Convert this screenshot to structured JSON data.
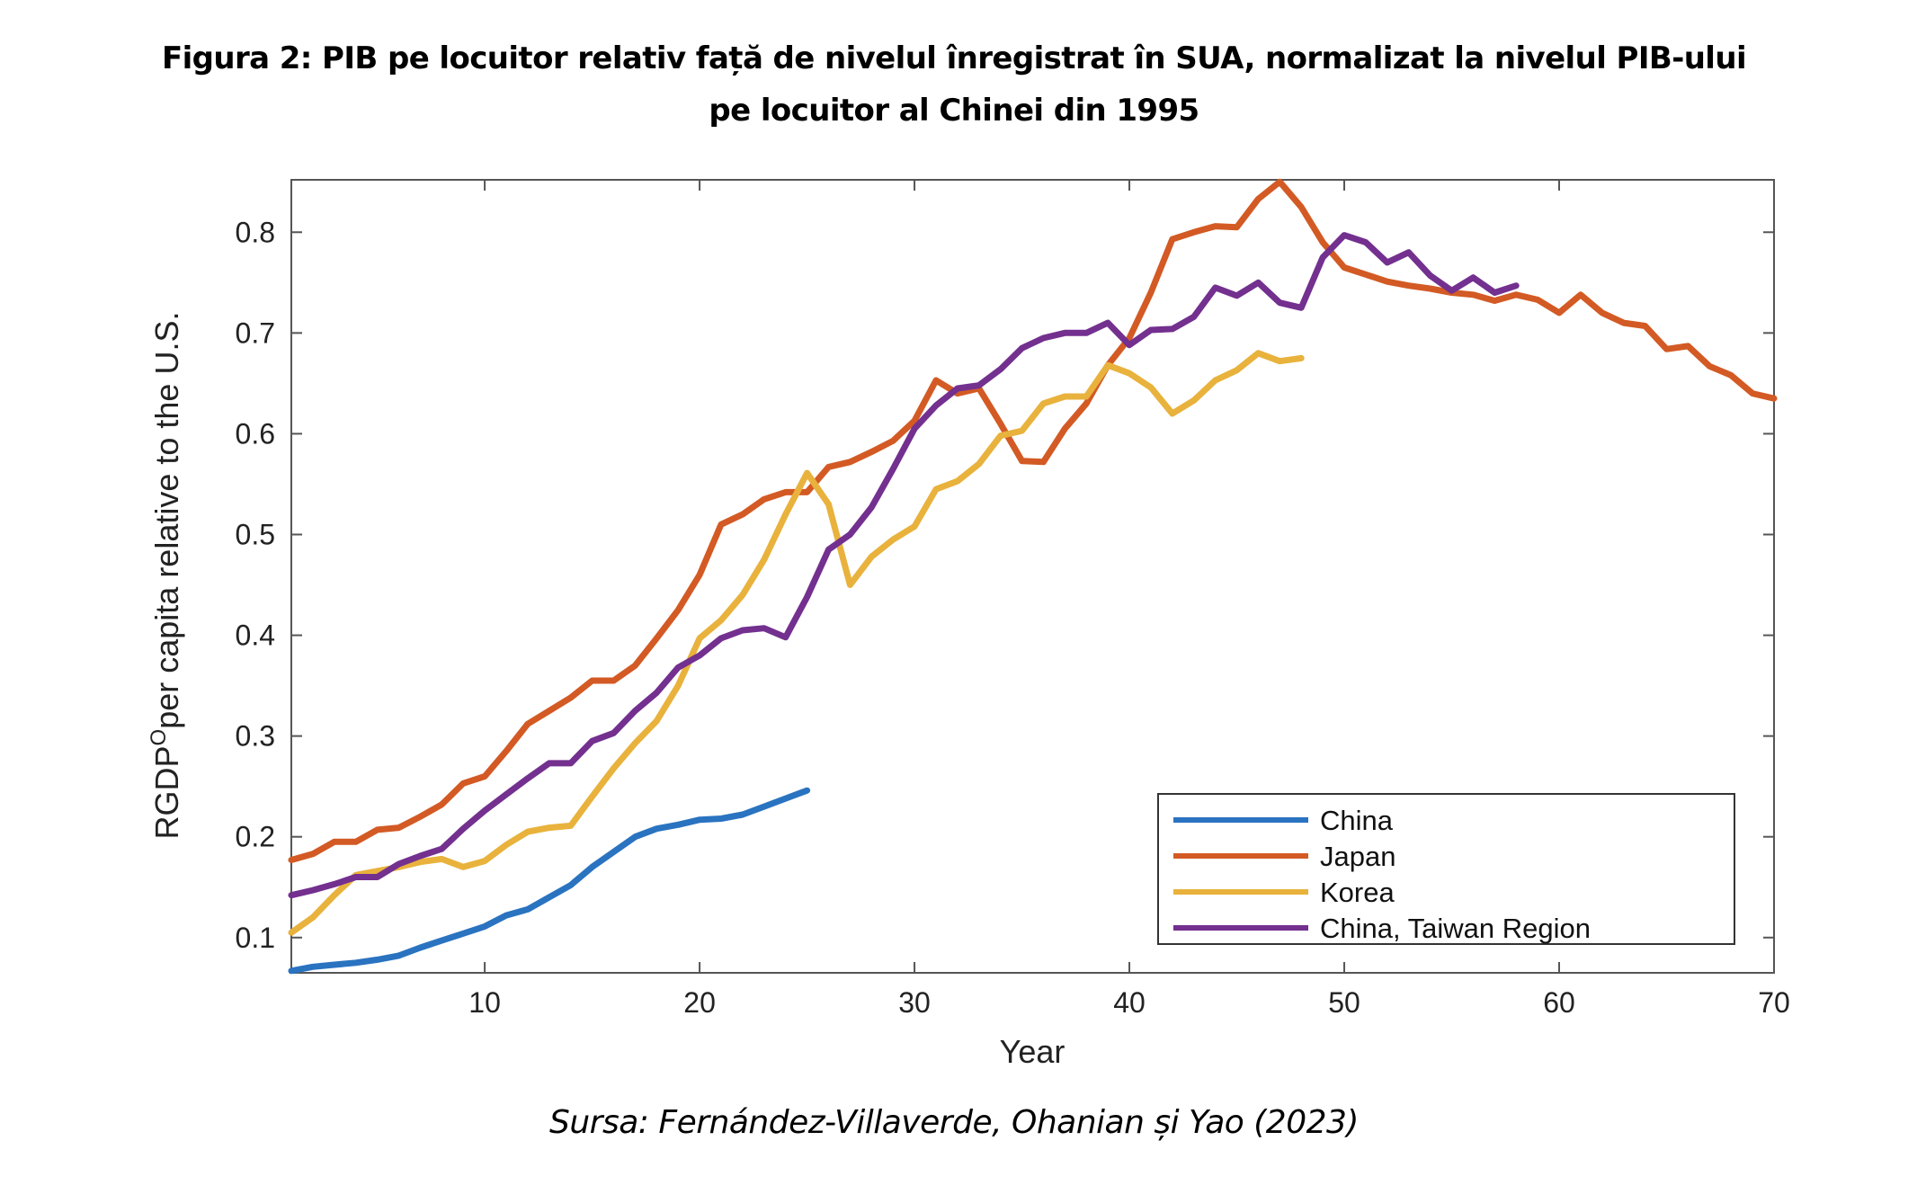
{
  "title_line1": "Figura 2: PIB pe locuitor relativ față de nivelul înregistrat în SUA, normalizat la nivelul PIB-ului",
  "title_line2": "pe locuitor al Chinei din 1995",
  "source": "Sursa: Fernández-Villaverde, Ohanian și Yao (2023)",
  "chart_data": {
    "type": "line",
    "xlabel": "Year",
    "ylabel_main": "RGDP",
    "ylabel_sup": "O",
    "ylabel_rest": "per capita relative to the U.S.",
    "xlim": [
      1,
      70
    ],
    "ylim": [
      0.065,
      0.852
    ],
    "xticks": [
      10,
      20,
      30,
      40,
      50,
      60,
      70
    ],
    "yticks": [
      0.1,
      0.2,
      0.3,
      0.4,
      0.5,
      0.6,
      0.7,
      0.8
    ],
    "grid": false,
    "legend_position": "bottom-right",
    "series": [
      {
        "name": "China",
        "color": "#2a73c0",
        "start": 1,
        "values": [
          0.067,
          0.071,
          0.073,
          0.075,
          0.078,
          0.082,
          0.09,
          0.097,
          0.104,
          0.111,
          0.122,
          0.128,
          0.14,
          0.152,
          0.17,
          0.185,
          0.2,
          0.208,
          0.212,
          0.217,
          0.218,
          0.222,
          0.23,
          0.238,
          0.246
        ]
      },
      {
        "name": "Japan",
        "color": "#d35a24",
        "start": 1,
        "values": [
          0.177,
          0.183,
          0.195,
          0.195,
          0.207,
          0.209,
          0.22,
          0.232,
          0.253,
          0.26,
          0.285,
          0.312,
          0.325,
          0.338,
          0.355,
          0.355,
          0.37,
          0.397,
          0.425,
          0.46,
          0.51,
          0.52,
          0.535,
          0.542,
          0.542,
          0.567,
          0.572,
          0.582,
          0.593,
          0.613,
          0.653,
          0.64,
          0.645,
          0.61,
          0.573,
          0.572,
          0.605,
          0.63,
          0.668,
          0.695,
          0.74,
          0.793,
          0.8,
          0.806,
          0.805,
          0.833,
          0.85,
          0.825,
          0.79,
          0.765,
          0.758,
          0.751,
          0.747,
          0.744,
          0.74,
          0.738,
          0.732,
          0.738,
          0.733,
          0.72,
          0.738,
          0.72,
          0.71,
          0.707,
          0.684,
          0.687,
          0.667,
          0.658,
          0.64,
          0.635
        ]
      },
      {
        "name": "Korea",
        "color": "#e8b23c",
        "start": 1,
        "values": [
          0.105,
          0.12,
          0.142,
          0.162,
          0.166,
          0.17,
          0.175,
          0.178,
          0.17,
          0.176,
          0.192,
          0.205,
          0.209,
          0.211,
          0.24,
          0.268,
          0.293,
          0.315,
          0.35,
          0.397,
          0.415,
          0.44,
          0.475,
          0.52,
          0.561,
          0.53,
          0.45,
          0.478,
          0.495,
          0.508,
          0.545,
          0.553,
          0.57,
          0.598,
          0.603,
          0.63,
          0.637,
          0.637,
          0.668,
          0.66,
          0.646,
          0.62,
          0.633,
          0.653,
          0.663,
          0.68,
          0.672,
          0.675
        ]
      },
      {
        "name": "China, Taiwan Region",
        "color": "#73308f",
        "start": 1,
        "values": [
          0.142,
          0.147,
          0.153,
          0.16,
          0.16,
          0.173,
          0.181,
          0.188,
          0.208,
          0.226,
          0.242,
          0.258,
          0.273,
          0.273,
          0.295,
          0.303,
          0.325,
          0.343,
          0.368,
          0.38,
          0.397,
          0.405,
          0.407,
          0.398,
          0.438,
          0.485,
          0.5,
          0.527,
          0.565,
          0.605,
          0.628,
          0.645,
          0.648,
          0.664,
          0.685,
          0.695,
          0.7,
          0.7,
          0.71,
          0.688,
          0.703,
          0.704,
          0.716,
          0.745,
          0.737,
          0.75,
          0.73,
          0.725,
          0.775,
          0.797,
          0.79,
          0.77,
          0.78,
          0.757,
          0.742,
          0.755,
          0.74,
          0.747
        ]
      }
    ]
  }
}
